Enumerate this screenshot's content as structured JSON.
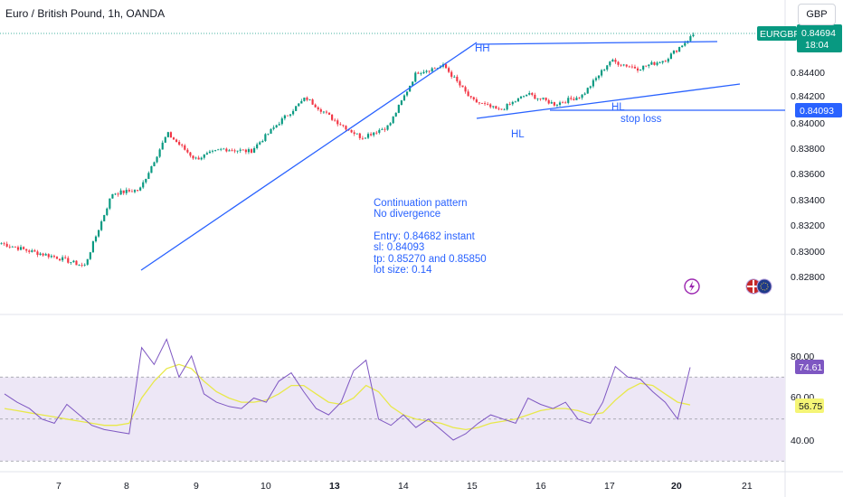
{
  "header": {
    "title": "Euro / British Pound, 1h, OANDA",
    "currency_button": "GBP"
  },
  "annotations": {
    "hh": "HH",
    "hl_left": "HL",
    "hl_right": "HL",
    "stop_loss": "stop loss",
    "note_lines": [
      "Continuation pattern",
      "No divergence",
      "",
      "Entry: 0.84682 instant",
      "sl: 0.84093",
      "tp: 0.85270 and 0.85850",
      "lot size: 0.14"
    ]
  },
  "price_panel": {
    "symbol_tag": "EURGBP",
    "last_price": "0.84694",
    "countdown": "18:04",
    "sl_tag": "0.84093",
    "colors": {
      "up": "#089981",
      "down": "#f23645",
      "trendline": "#2962ff",
      "label_bg": "#2962ff"
    }
  },
  "rsi_panel": {
    "value_tag": "74.61",
    "ma_tag": "56.75",
    "colors": {
      "rsi": "#7e57c2",
      "ma": "#e8e84a",
      "band": "#ede7f6"
    }
  },
  "chart_data": [
    {
      "type": "candlestick",
      "title": "Euro / British Pound, 1h, OANDA",
      "y_ticks": [
        "0.84400",
        "0.84200",
        "0.84000",
        "0.83800",
        "0.83600",
        "0.83400",
        "0.83200",
        "0.83000",
        "0.82800"
      ],
      "ylim": [
        0.8274,
        0.8475
      ],
      "x_ticks": [
        "7",
        "8",
        "9",
        "10",
        "13",
        "14",
        "15",
        "16",
        "17",
        "20",
        "21"
      ],
      "anchor_points": [
        {
          "x": "Jul 5",
          "y": 0.8306
        },
        {
          "x": "Jul 6",
          "y": 0.83
        },
        {
          "x": "Jul 7",
          "y": 0.8295
        },
        {
          "x": "Jul 8 early",
          "y": 0.8288
        },
        {
          "x": "Jul 8",
          "y": 0.8345
        },
        {
          "x": "Jul 8 late",
          "y": 0.8348
        },
        {
          "x": "Jul 9",
          "y": 0.8392
        },
        {
          "x": "Jul 9 late",
          "y": 0.8372
        },
        {
          "x": "Jul 10",
          "y": 0.838
        },
        {
          "x": "Jul 10 late",
          "y": 0.8378
        },
        {
          "x": "Jul 11",
          "y": 0.84
        },
        {
          "x": "Jul 12",
          "y": 0.842
        },
        {
          "x": "Jul 13",
          "y": 0.8403
        },
        {
          "x": "Jul 13 late",
          "y": 0.8389
        },
        {
          "x": "Jul 14",
          "y": 0.8398
        },
        {
          "x": "Jul 14 late",
          "y": 0.844
        },
        {
          "x": "Jul 15",
          "y": 0.8445
        },
        {
          "x": "Jul 15 mid",
          "y": 0.8418
        },
        {
          "x": "Jul 15 late",
          "y": 0.841
        },
        {
          "x": "Jul 16",
          "y": 0.8423
        },
        {
          "x": "Jul 16 late",
          "y": 0.8415
        },
        {
          "x": "Jul 17",
          "y": 0.8422
        },
        {
          "x": "Jul 17 late",
          "y": 0.8449
        },
        {
          "x": "Jul 19",
          "y": 0.8443
        },
        {
          "x": "Jul 20",
          "y": 0.845
        },
        {
          "x": "Jul 20 last",
          "y": 0.84694
        }
      ],
      "horizontal_levels": [
        {
          "label": "stop loss",
          "y": 0.84093
        }
      ]
    },
    {
      "type": "line",
      "title": "RSI",
      "y_ticks": [
        "80.00",
        "60.00",
        "40.00"
      ],
      "ylim": [
        25,
        90
      ],
      "bands": [
        70,
        50,
        30
      ],
      "series": [
        {
          "values": [
            62,
            58,
            55,
            50,
            48,
            57,
            52,
            47,
            45,
            44,
            43,
            84,
            76,
            88,
            70,
            80,
            62,
            58,
            56,
            55,
            60,
            58,
            68,
            72,
            63,
            55,
            52,
            58,
            73,
            78,
            50,
            47,
            52,
            46,
            50,
            45,
            40,
            43,
            48,
            52,
            50,
            48,
            60,
            57,
            55,
            58,
            50,
            48,
            58,
            75,
            70,
            69,
            63,
            58,
            50,
            74.61
          ]
        },
        {
          "values": [
            55,
            54,
            53,
            52,
            51,
            50,
            49,
            48,
            47,
            47,
            48,
            60,
            68,
            74,
            76,
            74,
            68,
            63,
            60,
            58,
            58,
            59,
            62,
            66,
            66,
            62,
            58,
            57,
            60,
            66,
            63,
            56,
            52,
            50,
            49,
            48,
            46,
            45,
            46,
            48,
            49,
            50,
            52,
            54,
            55,
            55,
            54,
            52,
            53,
            59,
            64,
            67,
            66,
            62,
            58,
            56.75
          ]
        }
      ]
    }
  ]
}
